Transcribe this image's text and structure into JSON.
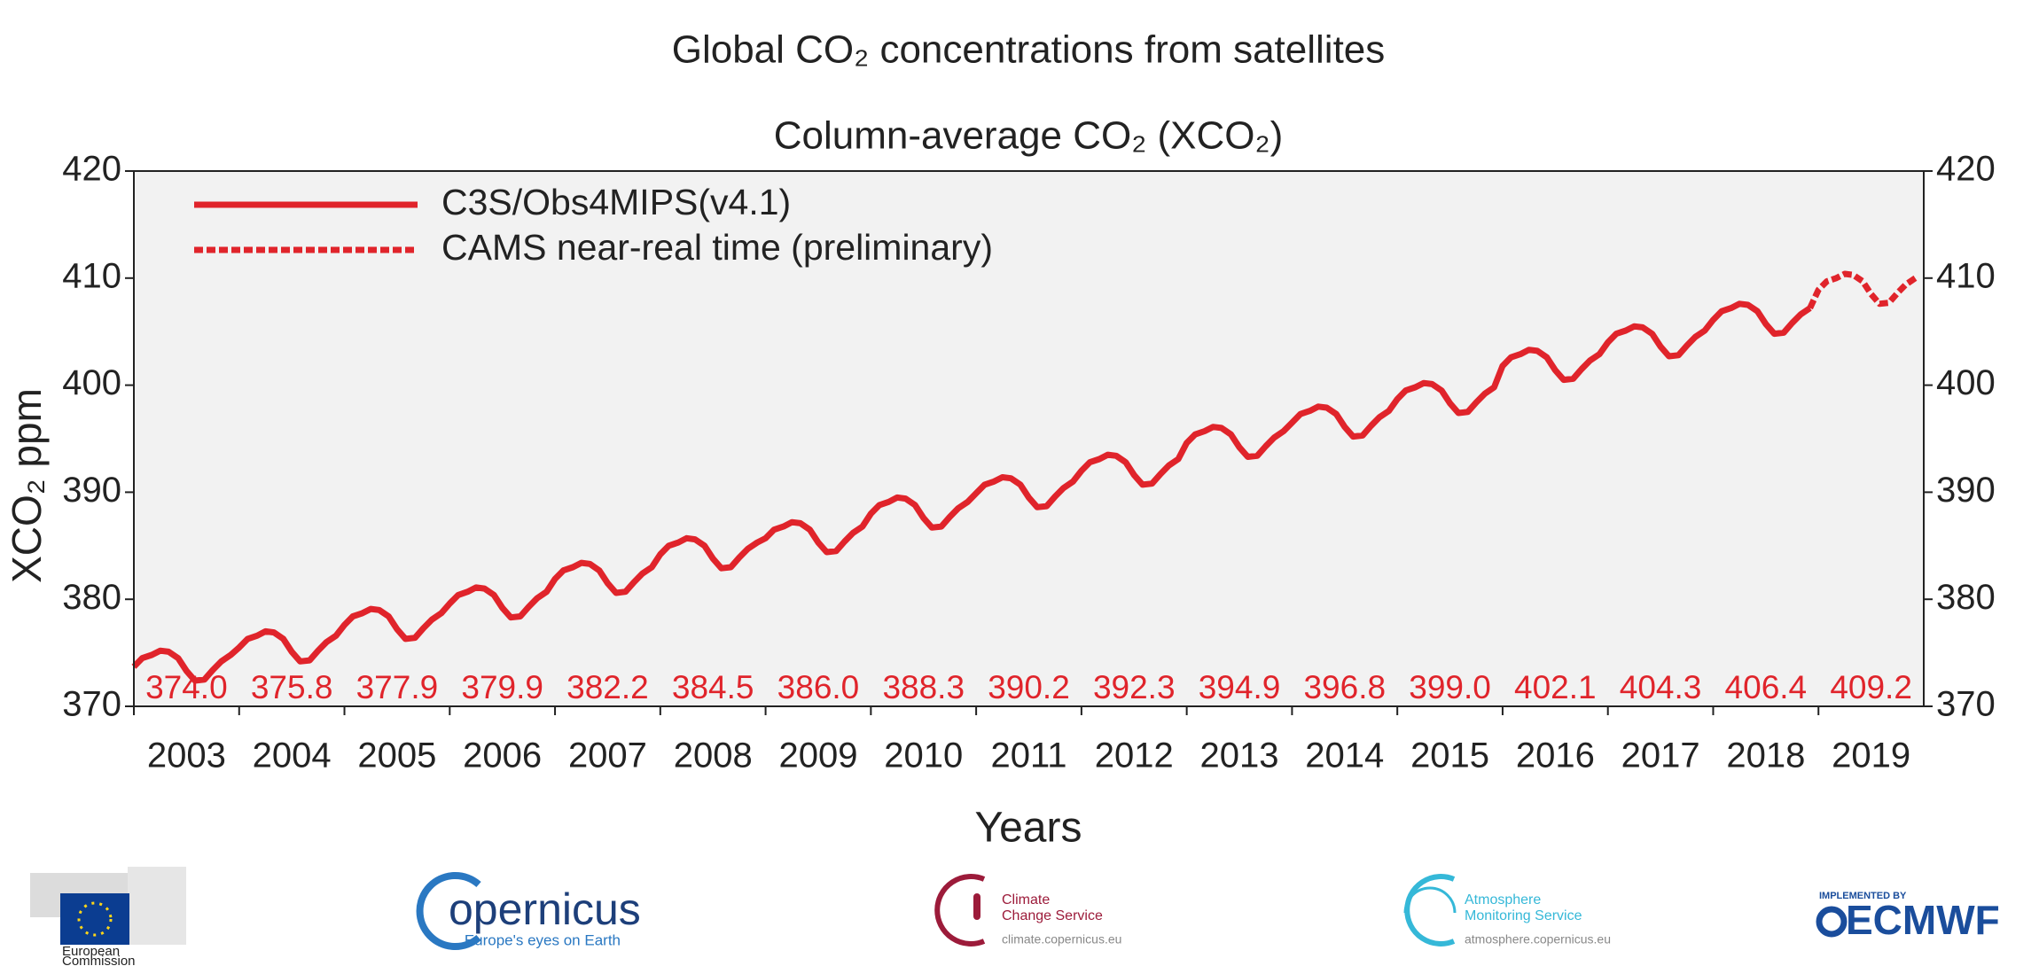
{
  "chart_data": {
    "type": "line",
    "title": "Global CO₂ concentrations from satellites",
    "subtitle": "Column-average CO₂ (XCO₂)",
    "x_label": "Years",
    "y_label": "XCO₂ ppm",
    "xlim": [
      2003,
      2020
    ],
    "xticks": [
      {
        "value": 2003,
        "label": "2003"
      },
      {
        "value": 2004,
        "label": "2004"
      },
      {
        "value": 2005,
        "label": "2005"
      },
      {
        "value": 2006,
        "label": "2006"
      },
      {
        "value": 2007,
        "label": "2007"
      },
      {
        "value": 2008,
        "label": "2008"
      },
      {
        "value": 2009,
        "label": "2009"
      },
      {
        "value": 2010,
        "label": "2010"
      },
      {
        "value": 2011,
        "label": "2011"
      },
      {
        "value": 2012,
        "label": "2012"
      },
      {
        "value": 2013,
        "label": "2013"
      },
      {
        "value": 2014,
        "label": "2014"
      },
      {
        "value": 2015,
        "label": "2015"
      },
      {
        "value": 2016,
        "label": "2016"
      },
      {
        "value": 2017,
        "label": "2017"
      },
      {
        "value": 2018,
        "label": "2018"
      },
      {
        "value": 2019,
        "label": "2019"
      }
    ],
    "ylim": [
      370,
      420
    ],
    "yticks": [
      370,
      380,
      390,
      400,
      410,
      420
    ],
    "y2lim": [
      370,
      420
    ],
    "y2ticks": [
      370,
      380,
      390,
      400,
      410,
      420
    ],
    "legend": "upper left",
    "series": [
      {
        "name": "C3S/Obs4MIPS(v4.1)",
        "color": "#e0242b",
        "line_style": "solid",
        "x": [
          2003.0,
          2003.08,
          2003.17,
          2003.25,
          2003.33,
          2003.42,
          2003.5,
          2003.58,
          2003.67,
          2003.75,
          2003.83,
          2003.92,
          2004.0,
          2004.08,
          2004.17,
          2004.25,
          2004.33,
          2004.42,
          2004.5,
          2004.58,
          2004.67,
          2004.75,
          2004.83,
          2004.92,
          2005.0,
          2005.08,
          2005.17,
          2005.25,
          2005.33,
          2005.42,
          2005.5,
          2005.58,
          2005.67,
          2005.75,
          2005.83,
          2005.92,
          2006.0,
          2006.08,
          2006.17,
          2006.25,
          2006.33,
          2006.42,
          2006.5,
          2006.58,
          2006.67,
          2006.75,
          2006.83,
          2006.92,
          2007.0,
          2007.08,
          2007.17,
          2007.25,
          2007.33,
          2007.42,
          2007.5,
          2007.58,
          2007.67,
          2007.75,
          2007.83,
          2007.92,
          2008.0,
          2008.08,
          2008.17,
          2008.25,
          2008.33,
          2008.42,
          2008.5,
          2008.58,
          2008.67,
          2008.75,
          2008.83,
          2008.92,
          2009.0,
          2009.08,
          2009.17,
          2009.25,
          2009.33,
          2009.42,
          2009.5,
          2009.58,
          2009.67,
          2009.75,
          2009.83,
          2009.92,
          2010.0,
          2010.08,
          2010.17,
          2010.25,
          2010.33,
          2010.42,
          2010.5,
          2010.58,
          2010.67,
          2010.75,
          2010.83,
          2010.92,
          2011.0,
          2011.08,
          2011.17,
          2011.25,
          2011.33,
          2011.42,
          2011.5,
          2011.58,
          2011.67,
          2011.75,
          2011.83,
          2011.92,
          2012.0,
          2012.08,
          2012.17,
          2012.25,
          2012.33,
          2012.42,
          2012.5,
          2012.58,
          2012.67,
          2012.75,
          2012.83,
          2012.92,
          2013.0,
          2013.08,
          2013.17,
          2013.25,
          2013.33,
          2013.42,
          2013.5,
          2013.58,
          2013.67,
          2013.75,
          2013.83,
          2013.92,
          2014.0,
          2014.08,
          2014.17,
          2014.25,
          2014.33,
          2014.42,
          2014.5,
          2014.58,
          2014.67,
          2014.75,
          2014.83,
          2014.92,
          2015.0,
          2015.08,
          2015.17,
          2015.25,
          2015.33,
          2015.42,
          2015.5,
          2015.58,
          2015.67,
          2015.75,
          2015.83,
          2015.92,
          2016.0,
          2016.08,
          2016.17,
          2016.25,
          2016.33,
          2016.42,
          2016.5,
          2016.58,
          2016.67,
          2016.75,
          2016.83,
          2016.92,
          2017.0,
          2017.08,
          2017.17,
          2017.25,
          2017.33,
          2017.42,
          2017.5,
          2017.58,
          2017.67,
          2017.75,
          2017.83,
          2017.92,
          2018.0,
          2018.08,
          2018.17,
          2018.25,
          2018.33,
          2018.42,
          2018.5,
          2018.58,
          2018.67,
          2018.75,
          2018.83,
          2018.92
        ],
        "values": [
          373.7,
          374.5,
          374.8,
          375.2,
          375.1,
          374.5,
          373.3,
          372.4,
          372.5,
          373.4,
          374.2,
          374.8,
          375.5,
          376.3,
          376.6,
          377.0,
          376.9,
          376.3,
          375.1,
          374.2,
          374.3,
          375.2,
          376.0,
          376.6,
          377.6,
          378.4,
          378.7,
          379.1,
          379.0,
          378.4,
          377.2,
          376.3,
          376.4,
          377.3,
          378.1,
          378.7,
          379.6,
          380.4,
          380.7,
          381.1,
          381.0,
          380.4,
          379.2,
          378.3,
          378.4,
          379.3,
          380.1,
          380.7,
          381.9,
          382.7,
          383.0,
          383.4,
          383.3,
          382.7,
          381.5,
          380.6,
          380.7,
          381.6,
          382.4,
          383.0,
          384.2,
          385.0,
          385.3,
          385.7,
          385.6,
          385.0,
          383.8,
          382.9,
          383.0,
          383.9,
          384.7,
          385.3,
          385.7,
          386.5,
          386.8,
          387.2,
          387.1,
          386.5,
          385.3,
          384.4,
          384.5,
          385.4,
          386.2,
          386.8,
          388.0,
          388.8,
          389.1,
          389.5,
          389.4,
          388.8,
          387.6,
          386.7,
          386.8,
          387.7,
          388.5,
          389.1,
          389.9,
          390.7,
          391.0,
          391.4,
          391.3,
          390.7,
          389.5,
          388.6,
          388.7,
          389.6,
          390.4,
          391.0,
          392.0,
          392.8,
          393.1,
          393.5,
          393.4,
          392.8,
          391.6,
          390.7,
          390.8,
          391.7,
          392.5,
          393.1,
          394.6,
          395.4,
          395.7,
          396.1,
          396.0,
          395.4,
          394.2,
          393.3,
          393.4,
          394.3,
          395.1,
          395.7,
          396.5,
          397.3,
          397.6,
          398.0,
          397.9,
          397.3,
          396.1,
          395.2,
          395.3,
          396.2,
          397.0,
          397.6,
          398.7,
          399.5,
          399.8,
          400.2,
          400.1,
          399.5,
          398.3,
          397.4,
          397.5,
          398.4,
          399.2,
          399.8,
          401.8,
          402.6,
          402.9,
          403.3,
          403.2,
          402.6,
          401.4,
          400.5,
          400.6,
          401.5,
          402.3,
          402.9,
          404.0,
          404.8,
          405.1,
          405.5,
          405.4,
          404.8,
          403.6,
          402.7,
          402.8,
          403.7,
          404.5,
          405.1,
          406.1,
          406.9,
          407.2,
          407.6,
          407.5,
          406.9,
          405.7,
          404.8,
          404.9,
          405.8,
          406.6,
          407.2
        ]
      },
      {
        "name": "CAMS near-real time (preliminary)",
        "color": "#e0242b",
        "line_style": "dashed",
        "x": [
          2018.92,
          2019.0,
          2019.08,
          2019.17,
          2019.25,
          2019.33,
          2019.42,
          2019.5,
          2019.58,
          2019.67,
          2019.75,
          2019.83,
          2019.92
        ],
        "values": [
          407.2,
          408.9,
          409.7,
          410.0,
          410.4,
          410.3,
          409.7,
          408.5,
          407.6,
          407.7,
          408.6,
          409.4,
          410.0
        ]
      }
    ],
    "annual_means": {
      "values": [
        374.0,
        375.8,
        377.9,
        379.9,
        382.2,
        384.5,
        386.0,
        388.3,
        390.2,
        392.3,
        394.9,
        396.8,
        399.0,
        402.1,
        404.3,
        406.4,
        409.2
      ],
      "value_labels": [
        "374.0",
        "375.8",
        "377.9",
        "379.9",
        "382.2",
        "384.5",
        "386.0",
        "388.3",
        "390.2",
        "392.3",
        "394.9",
        "396.8",
        "399.0",
        "402.1",
        "404.3",
        "406.4",
        "409.2"
      ]
    }
  },
  "logos": {
    "european_commission": [
      "European",
      "Commission"
    ],
    "copernicus": {
      "name": "opernicus",
      "tagline": "Europe's eyes on Earth"
    },
    "climate": {
      "name": [
        "Climate",
        "Change Service"
      ],
      "url": "climate.copernicus.eu"
    },
    "atmosphere": {
      "name": [
        "Atmosphere",
        "Monitoring Service"
      ],
      "url": "atmosphere.copernicus.eu"
    },
    "ecmwf": {
      "tag": "IMPLEMENTED BY",
      "name": "ECMWF"
    }
  }
}
